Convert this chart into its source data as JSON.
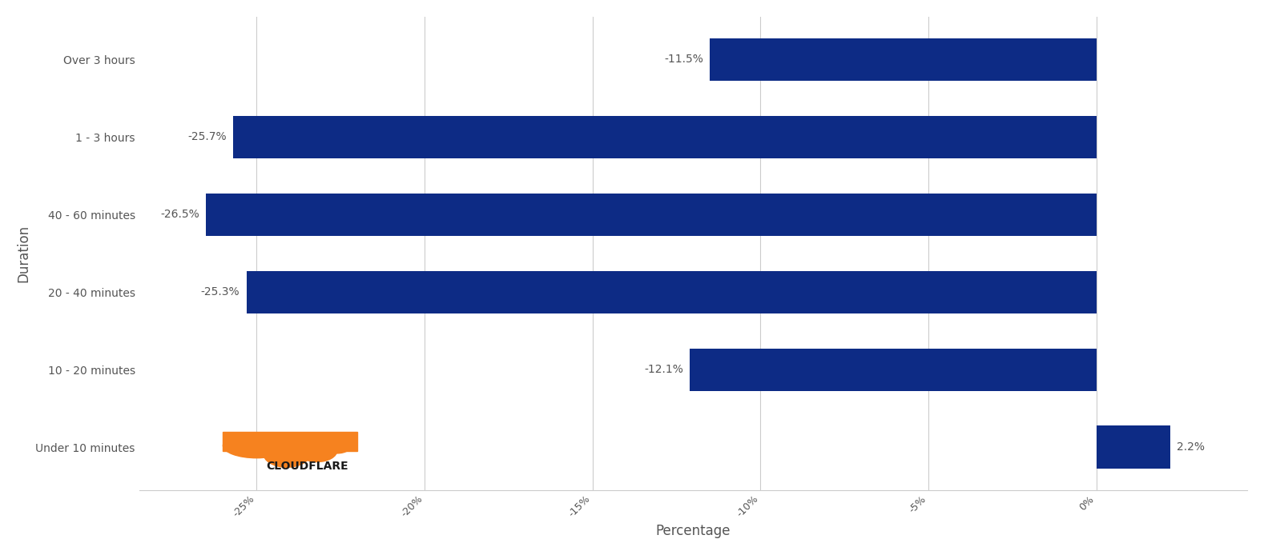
{
  "categories": [
    "Over 3 hours",
    "1 - 3 hours",
    "40 - 60 minutes",
    "20 - 40 minutes",
    "10 - 20 minutes",
    "Under 10 minutes"
  ],
  "values": [
    -11.5,
    -25.7,
    -26.5,
    -25.3,
    -12.1,
    2.2
  ],
  "labels": [
    "-11.5%",
    "-25.7%",
    "-26.5%",
    "-25.3%",
    "-12.1%",
    "2.2%"
  ],
  "bar_color": "#0D2B85",
  "background_color": "#ffffff",
  "xlabel": "Percentage",
  "ylabel": "Duration",
  "xlim": [
    -28.5,
    4.5
  ],
  "xticks": [
    -25,
    -20,
    -15,
    -10,
    -5,
    0
  ],
  "xtick_labels": [
    "-25%",
    "-20%",
    "-15%",
    "-10%",
    "-5%",
    "0%"
  ],
  "grid_color": "#cccccc",
  "text_color": "#555555",
  "label_fontsize": 10,
  "axis_label_fontsize": 12,
  "tick_fontsize": 9,
  "bar_height": 0.55
}
